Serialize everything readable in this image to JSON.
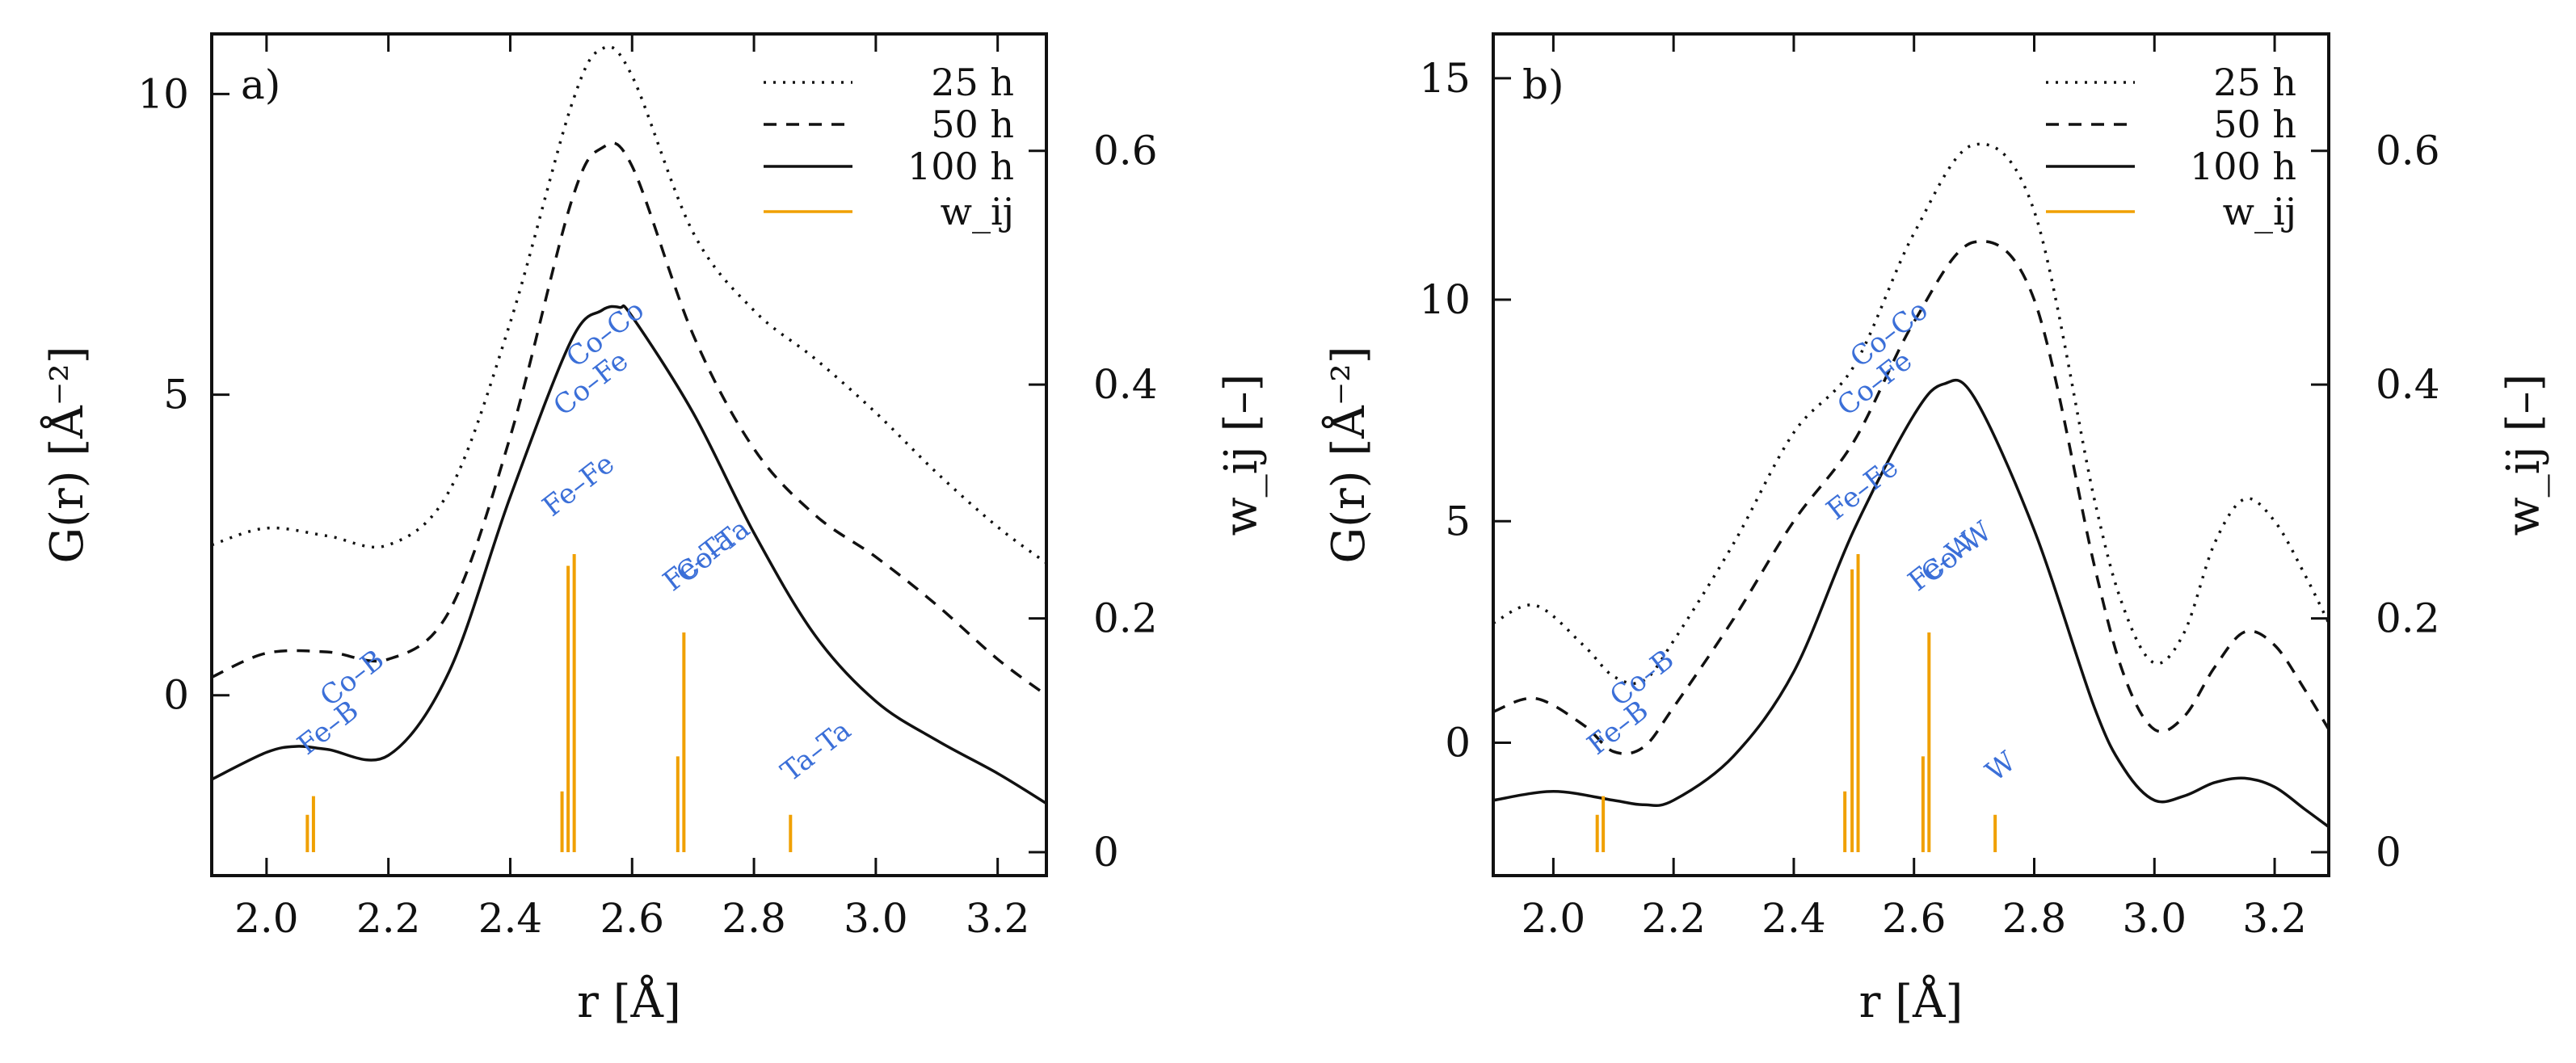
{
  "chart_data": [
    {
      "type": "line",
      "panel_label": "a)",
      "xlabel": "r [Å]",
      "ylabel": "G(r) [Å⁻²]",
      "ylabel_right": "w_ij [–]",
      "xlim": [
        1.91,
        3.28
      ],
      "ylim": [
        -3.0,
        11.0
      ],
      "ylim_right": [
        -0.02,
        0.7
      ],
      "x_ticks": [
        2.0,
        2.2,
        2.4,
        2.6,
        2.8,
        3.0,
        3.2
      ],
      "y_ticks": [
        0,
        5,
        10
      ],
      "y_ticks_right": [
        0,
        0.2,
        0.4,
        0.6
      ],
      "legend_position": "top-right",
      "series": [
        {
          "name": "25 h",
          "style": "dotted",
          "x": [
            1.91,
            2.0,
            2.1,
            2.2,
            2.3,
            2.4,
            2.5,
            2.55,
            2.6,
            2.7,
            2.8,
            2.9,
            3.0,
            3.1,
            3.2,
            3.28
          ],
          "y": [
            2.5,
            2.78,
            2.65,
            2.5,
            3.4,
            6.2,
            9.8,
            10.75,
            10.3,
            7.7,
            6.4,
            5.6,
            4.7,
            3.7,
            2.8,
            2.2
          ]
        },
        {
          "name": "50 h",
          "style": "dashed",
          "x": [
            1.91,
            2.0,
            2.1,
            2.2,
            2.3,
            2.4,
            2.5,
            2.55,
            2.6,
            2.7,
            2.8,
            2.9,
            3.0,
            3.1,
            3.2,
            3.28
          ],
          "y": [
            0.3,
            0.7,
            0.72,
            0.6,
            1.4,
            4.3,
            8.2,
            9.1,
            8.8,
            6.0,
            4.1,
            3.0,
            2.3,
            1.5,
            0.6,
            0.0
          ]
        },
        {
          "name": "100 h",
          "style": "solid",
          "x": [
            1.91,
            2.0,
            2.05,
            2.1,
            2.2,
            2.3,
            2.4,
            2.5,
            2.55,
            2.58,
            2.6,
            2.7,
            2.8,
            2.9,
            3.0,
            3.1,
            3.2,
            3.28
          ],
          "y": [
            -1.4,
            -0.95,
            -0.85,
            -0.9,
            -1.0,
            0.4,
            3.3,
            5.9,
            6.4,
            6.45,
            6.3,
            4.7,
            2.7,
            1.0,
            -0.1,
            -0.75,
            -1.3,
            -1.8
          ]
        }
      ],
      "weights": {
        "name": "w_ij",
        "color": "#f0a000",
        "sticks": [
          {
            "r": 2.067,
            "w": 0.032
          },
          {
            "r": 2.077,
            "w": 0.048
          },
          {
            "r": 2.485,
            "w": 0.052
          },
          {
            "r": 2.495,
            "w": 0.245
          },
          {
            "r": 2.505,
            "w": 0.255
          },
          {
            "r": 2.675,
            "w": 0.082
          },
          {
            "r": 2.685,
            "w": 0.188
          },
          {
            "r": 2.86,
            "w": 0.032
          }
        ]
      },
      "pair_labels": [
        "Co–B",
        "Fe–B",
        "Co–Co",
        "Co–Fe",
        "Fe–Fe",
        "Co–Ta",
        "Fe–Ta",
        "Ta–Ta"
      ]
    },
    {
      "type": "line",
      "panel_label": "b)",
      "xlabel": "r [Å]",
      "ylabel": "G(r) [Å⁻²]",
      "ylabel_right": "w_ij [–]",
      "xlim": [
        1.9,
        3.29
      ],
      "ylim": [
        -3.0,
        16.0
      ],
      "ylim_right": [
        -0.02,
        0.7
      ],
      "x_ticks": [
        2.0,
        2.2,
        2.4,
        2.6,
        2.8,
        3.0,
        3.2
      ],
      "y_ticks": [
        0,
        5,
        10,
        15
      ],
      "y_ticks_right": [
        0,
        0.2,
        0.4,
        0.6
      ],
      "legend_position": "top-right",
      "series": [
        {
          "name": "25 h",
          "style": "dotted",
          "x": [
            1.9,
            1.97,
            2.05,
            2.1,
            2.15,
            2.2,
            2.3,
            2.4,
            2.5,
            2.6,
            2.7,
            2.8,
            2.9,
            2.95,
            3.0,
            3.05,
            3.1,
            3.15,
            3.2,
            3.25,
            3.29
          ],
          "y": [
            2.7,
            3.1,
            2.2,
            1.5,
            1.4,
            2.3,
            4.5,
            7.0,
            8.5,
            11.5,
            13.5,
            12.0,
            5.5,
            3.0,
            1.8,
            2.5,
            4.5,
            5.5,
            5.0,
            3.8,
            2.7
          ]
        },
        {
          "name": "50 h",
          "style": "dashed",
          "x": [
            1.9,
            1.97,
            2.05,
            2.1,
            2.15,
            2.2,
            2.3,
            2.4,
            2.5,
            2.6,
            2.7,
            2.8,
            2.9,
            2.95,
            3.0,
            3.05,
            3.1,
            3.15,
            3.2,
            3.25,
            3.29
          ],
          "y": [
            0.7,
            1.0,
            0.4,
            -0.2,
            -0.1,
            0.8,
            2.8,
            5.0,
            6.8,
            9.5,
            11.3,
            10.0,
            4.0,
            1.5,
            0.3,
            0.6,
            1.7,
            2.5,
            2.2,
            1.2,
            0.3
          ]
        },
        {
          "name": "100 h",
          "style": "solid",
          "x": [
            1.9,
            2.0,
            2.1,
            2.15,
            2.2,
            2.3,
            2.4,
            2.5,
            2.6,
            2.65,
            2.7,
            2.8,
            2.9,
            2.95,
            3.0,
            3.05,
            3.1,
            3.15,
            3.2,
            3.25,
            3.29
          ],
          "y": [
            -1.3,
            -1.1,
            -1.3,
            -1.4,
            -1.3,
            -0.3,
            1.6,
            4.8,
            7.4,
            8.1,
            7.8,
            4.8,
            0.8,
            -0.6,
            -1.3,
            -1.2,
            -0.9,
            -0.8,
            -1.0,
            -1.5,
            -1.9
          ]
        }
      ],
      "weights": {
        "name": "w_ij",
        "color": "#f0a000",
        "sticks": [
          {
            "r": 2.073,
            "w": 0.032
          },
          {
            "r": 2.083,
            "w": 0.048
          },
          {
            "r": 2.485,
            "w": 0.052
          },
          {
            "r": 2.497,
            "w": 0.242
          },
          {
            "r": 2.507,
            "w": 0.255
          },
          {
            "r": 2.615,
            "w": 0.082
          },
          {
            "r": 2.625,
            "w": 0.188
          },
          {
            "r": 2.735,
            "w": 0.032
          }
        ]
      },
      "pair_labels": [
        "Co–B",
        "Fe–B",
        "Co–Co",
        "Co–Fe",
        "Fe–Fe",
        "Co–W",
        "Fe–W",
        "W"
      ]
    }
  ]
}
